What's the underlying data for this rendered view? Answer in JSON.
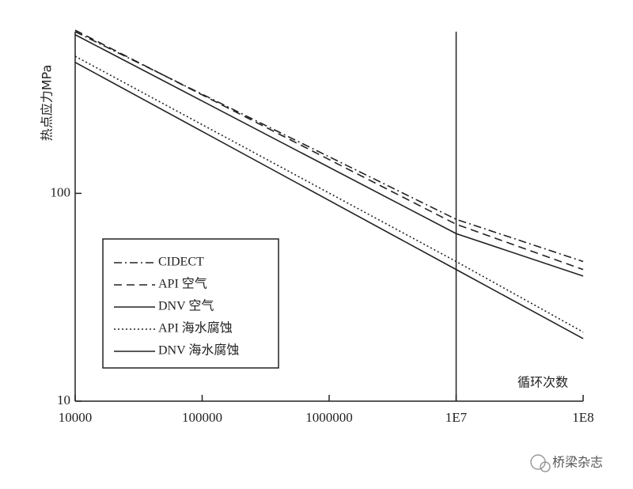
{
  "chart_data": {
    "type": "line",
    "x_label": "循环次数",
    "y_label": "热点应力MPa",
    "log_x": true,
    "log_y": true,
    "xlim": [
      10000,
      100000000
    ],
    "ylim": [
      10,
      600
    ],
    "xticks": [
      10000,
      100000,
      1000000,
      {
        "value": 10000000,
        "label": "1E7"
      },
      {
        "value": 100000000,
        "label": "1E8"
      }
    ],
    "yticks": [
      10,
      100
    ],
    "vline": 10000000,
    "series": [
      {
        "name": "CIDECT",
        "color": "#222222",
        "dash": "dashdot",
        "x": [
          10000,
          10000000,
          100000000
        ],
        "values": [
          600,
          75,
          47
        ]
      },
      {
        "name": "API 空气",
        "color": "#222222",
        "dash": "dashed",
        "x": [
          10000,
          10000000,
          100000000
        ],
        "values": [
          610,
          71,
          43
        ]
      },
      {
        "name": "DNV 空气",
        "color": "#222222",
        "dash": "solid",
        "x": [
          10000,
          10000000,
          100000000
        ],
        "values": [
          580,
          64,
          40
        ]
      },
      {
        "name": "API 海水腐蚀",
        "color": "#222222",
        "dash": "dotted",
        "x": [
          10000,
          10000000,
          100000000
        ],
        "values": [
          457,
          47,
          21.5
        ]
      },
      {
        "name": "DNV 海水腐蚀",
        "color": "#222222",
        "dash": "solid",
        "x": [
          10000,
          10000000,
          100000000
        ],
        "values": [
          427,
          43,
          20
        ]
      }
    ],
    "legend_position": "lower-left",
    "watermark": "桥梁杂志"
  }
}
